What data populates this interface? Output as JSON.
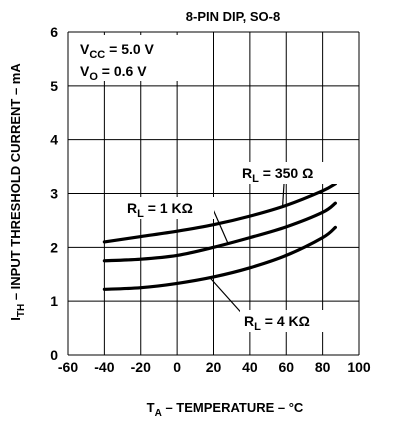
{
  "chart_data": {
    "type": "line",
    "title": "8-PIN DIP, SO-8",
    "xlabel": {
      "main": "T",
      "sub": "A",
      "rest": " – TEMPERATURE – °C"
    },
    "ylabel": {
      "main": "I",
      "sub": "TH",
      "rest": " – INPUT THRESHOLD CURRENT – mA"
    },
    "xlim": [
      -60,
      100
    ],
    "ylim": [
      0,
      6
    ],
    "x_ticks": [
      "-60",
      "-40",
      "-20",
      "0",
      "20",
      "40",
      "60",
      "80",
      "100"
    ],
    "y_ticks": [
      "0",
      "1",
      "2",
      "3",
      "4",
      "5",
      "6"
    ],
    "grid": true,
    "conditions": [
      {
        "main": "V",
        "sub": "CC",
        "rest": " = 5.0 V"
      },
      {
        "main": "V",
        "sub": "O",
        "rest": " = 0.6 V"
      }
    ],
    "series": [
      {
        "name": {
          "main": "R",
          "sub": "L",
          "rest": " = 350 Ω"
        },
        "x": [
          -40,
          -20,
          0,
          20,
          40,
          60,
          80,
          87
        ],
        "y": [
          2.1,
          2.2,
          2.3,
          2.42,
          2.58,
          2.78,
          3.05,
          3.18
        ]
      },
      {
        "name": {
          "main": "R",
          "sub": "L",
          "rest": " = 1 KΩ"
        },
        "x": [
          -40,
          -20,
          0,
          20,
          40,
          60,
          80,
          87
        ],
        "y": [
          1.75,
          1.78,
          1.85,
          2.0,
          2.18,
          2.38,
          2.65,
          2.82
        ]
      },
      {
        "name": {
          "main": "R",
          "sub": "L",
          "rest": " = 4 KΩ"
        },
        "x": [
          -40,
          -20,
          0,
          20,
          40,
          60,
          80,
          87
        ],
        "y": [
          1.22,
          1.25,
          1.33,
          1.45,
          1.62,
          1.85,
          2.18,
          2.37
        ]
      }
    ]
  }
}
